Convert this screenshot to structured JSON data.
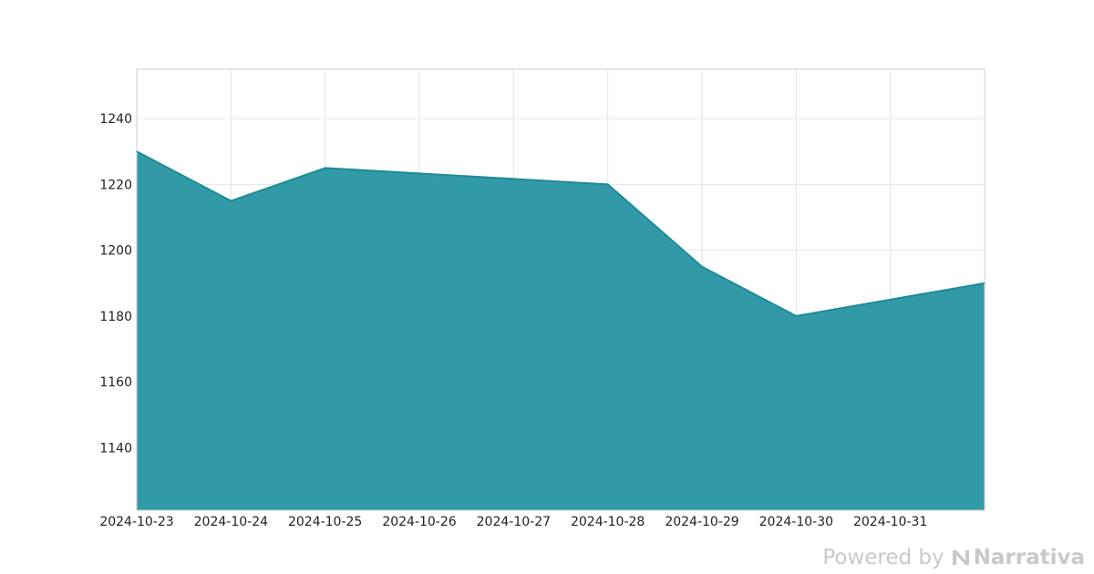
{
  "chart_data": {
    "type": "area",
    "title": "",
    "xlabel": "",
    "ylabel": "",
    "x": [
      "2024-10-23",
      "2024-10-24",
      "2024-10-25",
      "2024-10-28",
      "2024-10-29",
      "2024-10-30",
      "2024-11-01"
    ],
    "series": [
      {
        "values": [
          1230,
          1215,
          1225,
          1220,
          1195,
          1180,
          1190
        ]
      }
    ],
    "x_tick_labels": [
      "2024-10-23",
      "2024-10-24",
      "2024-10-25",
      "2024-10-26",
      "2024-10-27",
      "2024-10-28",
      "2024-10-29",
      "2024-10-30",
      "2024-10-31"
    ],
    "y_ticks": [
      1140,
      1160,
      1180,
      1200,
      1220,
      1240
    ],
    "xlim": [
      "2024-10-23",
      "2024-11-01"
    ],
    "ylim": [
      1121,
      1255
    ],
    "grid": true,
    "colors": {
      "fill": "#2a96a3",
      "line": "#1e8a96"
    }
  },
  "watermark": {
    "powered_by": "Powered by",
    "brand": "Narrativa"
  }
}
